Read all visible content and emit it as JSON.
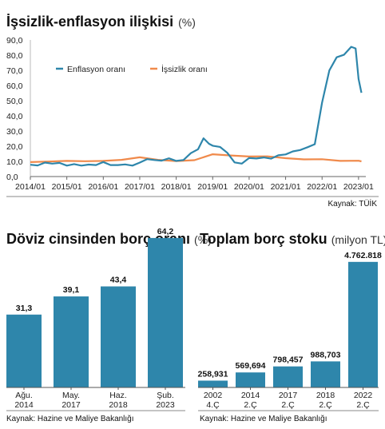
{
  "chart_data": [
    {
      "type": "line",
      "title": "İşsizlik-enflasyon ilişkisi",
      "unit": "(%)",
      "ylim": [
        0,
        90
      ],
      "yticks": [
        "90,0",
        "80,0",
        "70,0",
        "60,0",
        "50,0",
        "40,0",
        "30,0",
        "20,0",
        "10,0",
        "0,0"
      ],
      "xticks": [
        "2014/01",
        "2015/01",
        "2016/01",
        "2017/01",
        "2018/01",
        "2019/01",
        "2020/01",
        "2021/01",
        "2022/01",
        "2023/01"
      ],
      "grid": false,
      "legend": "top-left",
      "source": "Kaynak: TÜİK",
      "colors": {
        "enflasyon": "#2e86ab",
        "issizlik": "#f08a4b"
      },
      "series": [
        {
          "name": "Enflasyon oranı",
          "x": [
            2014.0,
            2014.2,
            2014.4,
            2014.6,
            2014.8,
            2015.0,
            2015.2,
            2015.4,
            2015.6,
            2015.8,
            2016.0,
            2016.2,
            2016.4,
            2016.6,
            2016.8,
            2017.0,
            2017.2,
            2017.4,
            2017.6,
            2017.8,
            2018.0,
            2018.2,
            2018.4,
            2018.6,
            2018.75,
            2018.9,
            2019.0,
            2019.2,
            2019.4,
            2019.6,
            2019.8,
            2020.0,
            2020.2,
            2020.4,
            2020.6,
            2020.8,
            2021.0,
            2021.2,
            2021.4,
            2021.6,
            2021.8,
            2022.0,
            2022.2,
            2022.4,
            2022.6,
            2022.8,
            2022.92,
            2023.0,
            2023.08
          ],
          "values": [
            7.8,
            7.3,
            9.2,
            8.5,
            9.0,
            7.2,
            8.2,
            7.2,
            7.9,
            7.6,
            9.6,
            7.6,
            7.6,
            8.0,
            7.2,
            9.2,
            11.5,
            10.9,
            10.5,
            12.0,
            10.3,
            10.9,
            15.4,
            18.0,
            25.2,
            21.6,
            20.3,
            19.5,
            15.7,
            9.3,
            8.5,
            12.2,
            11.9,
            12.6,
            11.8,
            14.0,
            14.6,
            16.6,
            17.5,
            19.3,
            21.3,
            48.7,
            69.9,
            78.6,
            80.2,
            85.5,
            84.4,
            64.3,
            55.2
          ]
        },
        {
          "name": "İşsizlik oranı",
          "x": [
            2014.0,
            2014.5,
            2015.0,
            2015.5,
            2016.0,
            2016.5,
            2017.0,
            2017.5,
            2018.0,
            2018.5,
            2019.0,
            2019.5,
            2020.0,
            2020.5,
            2021.0,
            2021.5,
            2022.0,
            2022.5,
            2023.0,
            2023.08
          ],
          "values": [
            9.5,
            9.9,
            10.3,
            10.1,
            10.3,
            11.0,
            12.7,
            11.0,
            10.2,
            10.8,
            14.7,
            13.9,
            13.2,
            13.3,
            12.1,
            11.3,
            11.4,
            10.3,
            10.4,
            10.0
          ]
        }
      ]
    },
    {
      "type": "bar",
      "title": "Döviz cinsinden borç oranı",
      "unit": "(%)",
      "ylim": [
        0,
        70
      ],
      "categories": [
        [
          "Ağu.",
          "2014"
        ],
        [
          "May.",
          "2017"
        ],
        [
          "Haz.",
          "2018"
        ],
        [
          "Şub.",
          "2023"
        ]
      ],
      "values": [
        31.3,
        39.1,
        43.4,
        64.2
      ],
      "labels": [
        "31,3",
        "39,1",
        "43,4",
        "64,2"
      ],
      "color": "#2e86ab",
      "source": "Kaynak: Hazine ve Maliye Bakanlığı"
    },
    {
      "type": "bar",
      "title": "Toplam borç stoku",
      "unit": "(milyon TL)",
      "ylim": [
        0,
        5000000
      ],
      "categories": [
        [
          "2002",
          "4.Ç"
        ],
        [
          "2014",
          "2.Ç"
        ],
        [
          "2017",
          "2.Ç"
        ],
        [
          "2018",
          "2.Ç"
        ],
        [
          "2022",
          "2.Ç"
        ]
      ],
      "values": [
        258931,
        569694,
        798457,
        988703,
        4762818
      ],
      "labels": [
        "258,931",
        "569,694",
        "798,457",
        "988,703",
        "4.762.818"
      ],
      "color": "#2e86ab",
      "source": "Kaynak: Hazine ve Maliye Bakanlığı"
    }
  ]
}
